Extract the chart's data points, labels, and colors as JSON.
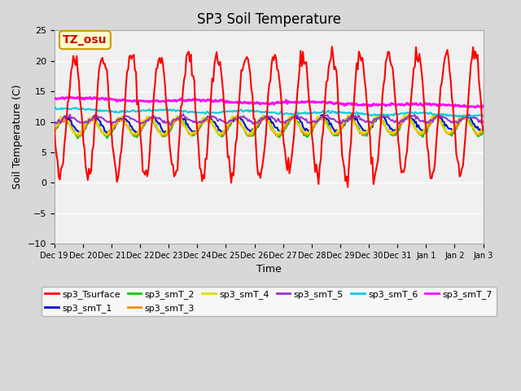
{
  "title": "SP3 Soil Temperature",
  "xlabel": "Time",
  "ylabel": "Soil Temperature (C)",
  "ylim": [
    -10,
    25
  ],
  "annotation_text": "TZ_osu",
  "annotation_color": "#cc0000",
  "annotation_bg": "#ffffcc",
  "annotation_border": "#cc9900",
  "series_colors": {
    "sp3_Tsurface": "#ff0000",
    "sp3_smT_1": "#0000cc",
    "sp3_smT_2": "#00cc00",
    "sp3_smT_3": "#ff8800",
    "sp3_smT_4": "#dddd00",
    "sp3_smT_5": "#9933cc",
    "sp3_smT_6": "#00ccdd",
    "sp3_smT_7": "#ff00ff"
  },
  "bg_color": "#d8d8d8",
  "plot_bg_color": "#f0f0f0",
  "xtick_labels": [
    "Dec 19",
    "Dec 20",
    "Dec 21",
    "Dec 22",
    "Dec 23",
    "Dec 24",
    "Dec 25",
    "Dec 26",
    "Dec 27",
    "Dec 28",
    "Dec 29",
    "Dec 30",
    "Dec 31",
    "Jan 1",
    "Jan 2",
    "Jan 3"
  ],
  "yticks": [
    -10,
    -5,
    0,
    5,
    10,
    15,
    20,
    25
  ]
}
